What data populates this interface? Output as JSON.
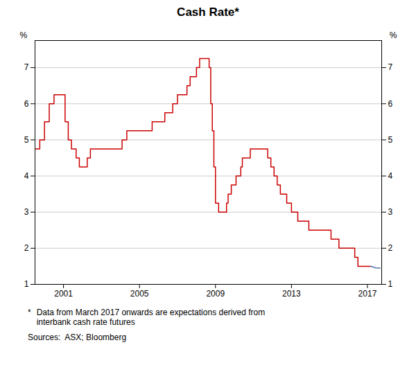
{
  "chart_data": {
    "type": "line",
    "title": "Cash Rate*",
    "xlim": [
      1999.5,
      2017.75
    ],
    "xticks": [
      2001,
      2005,
      2009,
      2013,
      2017
    ],
    "ylim": [
      1,
      7.75
    ],
    "yticks": [
      1,
      2,
      3,
      4,
      5,
      6,
      7
    ],
    "y2lim": [
      1,
      7.75
    ],
    "y2ticks": [
      1,
      2,
      3,
      4,
      5,
      6,
      7
    ],
    "ylabel": "%",
    "y2label": "%",
    "grid": true,
    "annotations": [
      "*",
      "Data from March 2017 onwards are expectations derived from\ninterbank cash rate futures",
      "Sources:  ASX; Bloomberg"
    ],
    "series": [
      {
        "type": "step",
        "color": "#cc0000",
        "x": [
          1999.5,
          1999.75,
          2000.0,
          2000.25,
          2000.5,
          2000.666,
          2001.0,
          2001.083,
          2001.25,
          2001.416,
          2001.666,
          2001.833,
          2002.0,
          2002.25,
          2002.416,
          2002.75,
          2003.0,
          2004.083,
          2004.333,
          2005.083,
          2005.666,
          2006.083,
          2006.333,
          2006.75,
          2007.0,
          2007.5,
          2007.666,
          2008.0,
          2008.166,
          2008.666,
          2008.75,
          2008.833,
          2008.916,
          2009.0,
          2009.166,
          2009.583,
          2009.666,
          2009.833,
          2010.083,
          2010.333,
          2010.416,
          2010.833,
          2011.0,
          2011.75,
          2011.916,
          2012.083,
          2012.25,
          2012.416,
          2012.75,
          2013.0,
          2013.333,
          2013.916,
          2014.0,
          2015.083,
          2015.5,
          2016.0,
          2016.333,
          2016.5,
          2017.166
        ],
        "values": [
          4.75,
          5.0,
          5.5,
          6.0,
          6.25,
          6.25,
          6.25,
          5.5,
          5.0,
          4.75,
          4.5,
          4.25,
          4.25,
          4.5,
          4.75,
          4.75,
          4.75,
          5.0,
          5.25,
          5.25,
          5.5,
          5.5,
          5.75,
          6.0,
          6.25,
          6.5,
          6.75,
          7.0,
          7.25,
          7.0,
          6.0,
          5.25,
          4.25,
          3.25,
          3.0,
          3.25,
          3.5,
          3.75,
          4.0,
          4.25,
          4.5,
          4.75,
          4.75,
          4.5,
          4.25,
          4.0,
          3.75,
          3.5,
          3.25,
          3.0,
          2.75,
          2.5,
          2.5,
          2.25,
          2.0,
          2.0,
          1.75,
          1.5,
          1.5
        ]
      },
      {
        "type": "line",
        "color": "#4a6fa5",
        "x": [
          2017.166,
          2017.25,
          2017.333,
          2017.416,
          2017.5,
          2017.583,
          2017.666
        ],
        "values": [
          1.5,
          1.49,
          1.475,
          1.462,
          1.455,
          1.452,
          1.452
        ]
      }
    ]
  }
}
